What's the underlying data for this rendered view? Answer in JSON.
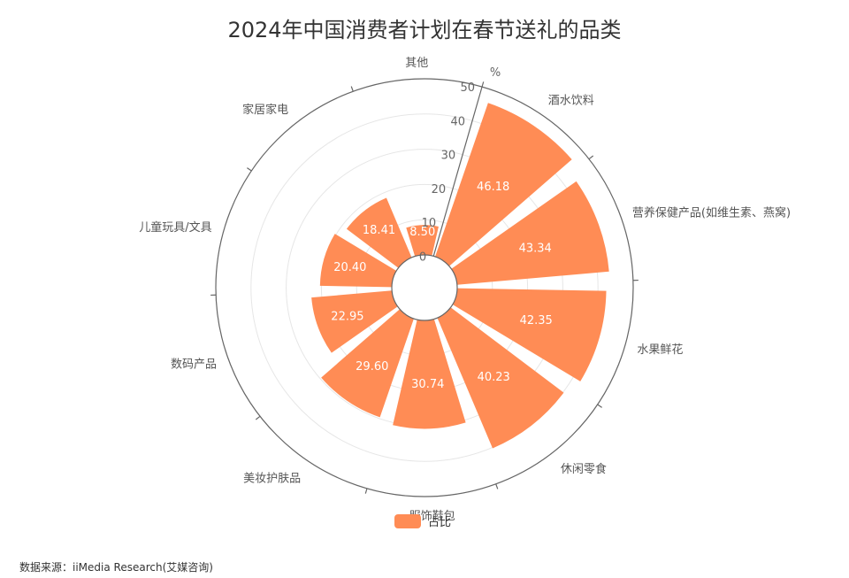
{
  "chart_data": {
    "type": "bar",
    "polar": true,
    "title": "2024年中国消费者计划在春节送礼的品类",
    "unit": "%",
    "categories": [
      "酒水饮料",
      "营养保健产品(如维生素、燕窝)",
      "水果鲜花",
      "休闲零食",
      "服饰鞋包",
      "美妆护肤品",
      "数码产品",
      "儿童玩具/文具",
      "家居家电",
      "其他"
    ],
    "series": [
      {
        "name": "占比",
        "values": [
          46.18,
          43.34,
          42.35,
          40.23,
          30.74,
          29.6,
          22.95,
          20.4,
          18.41,
          8.5
        ]
      }
    ],
    "value_labels": [
      "46.18",
      "43.34",
      "42.35",
      "40.23",
      "30.74",
      "29.60",
      "22.95",
      "20.40",
      "18.41",
      "8.50"
    ],
    "radial_axis": {
      "min": 0,
      "max": 50,
      "ticks": [
        "0",
        "10",
        "20",
        "30",
        "40",
        "50"
      ],
      "grid": true
    },
    "legend": {
      "position": "bottom",
      "label": "占比"
    },
    "colors": {
      "bar": "#FF8C55",
      "axis": "#666666",
      "grid": "#e6e6e6",
      "text": "#555555"
    }
  },
  "source_note": "数据来源：iiMedia Research(艾媒咨询)"
}
